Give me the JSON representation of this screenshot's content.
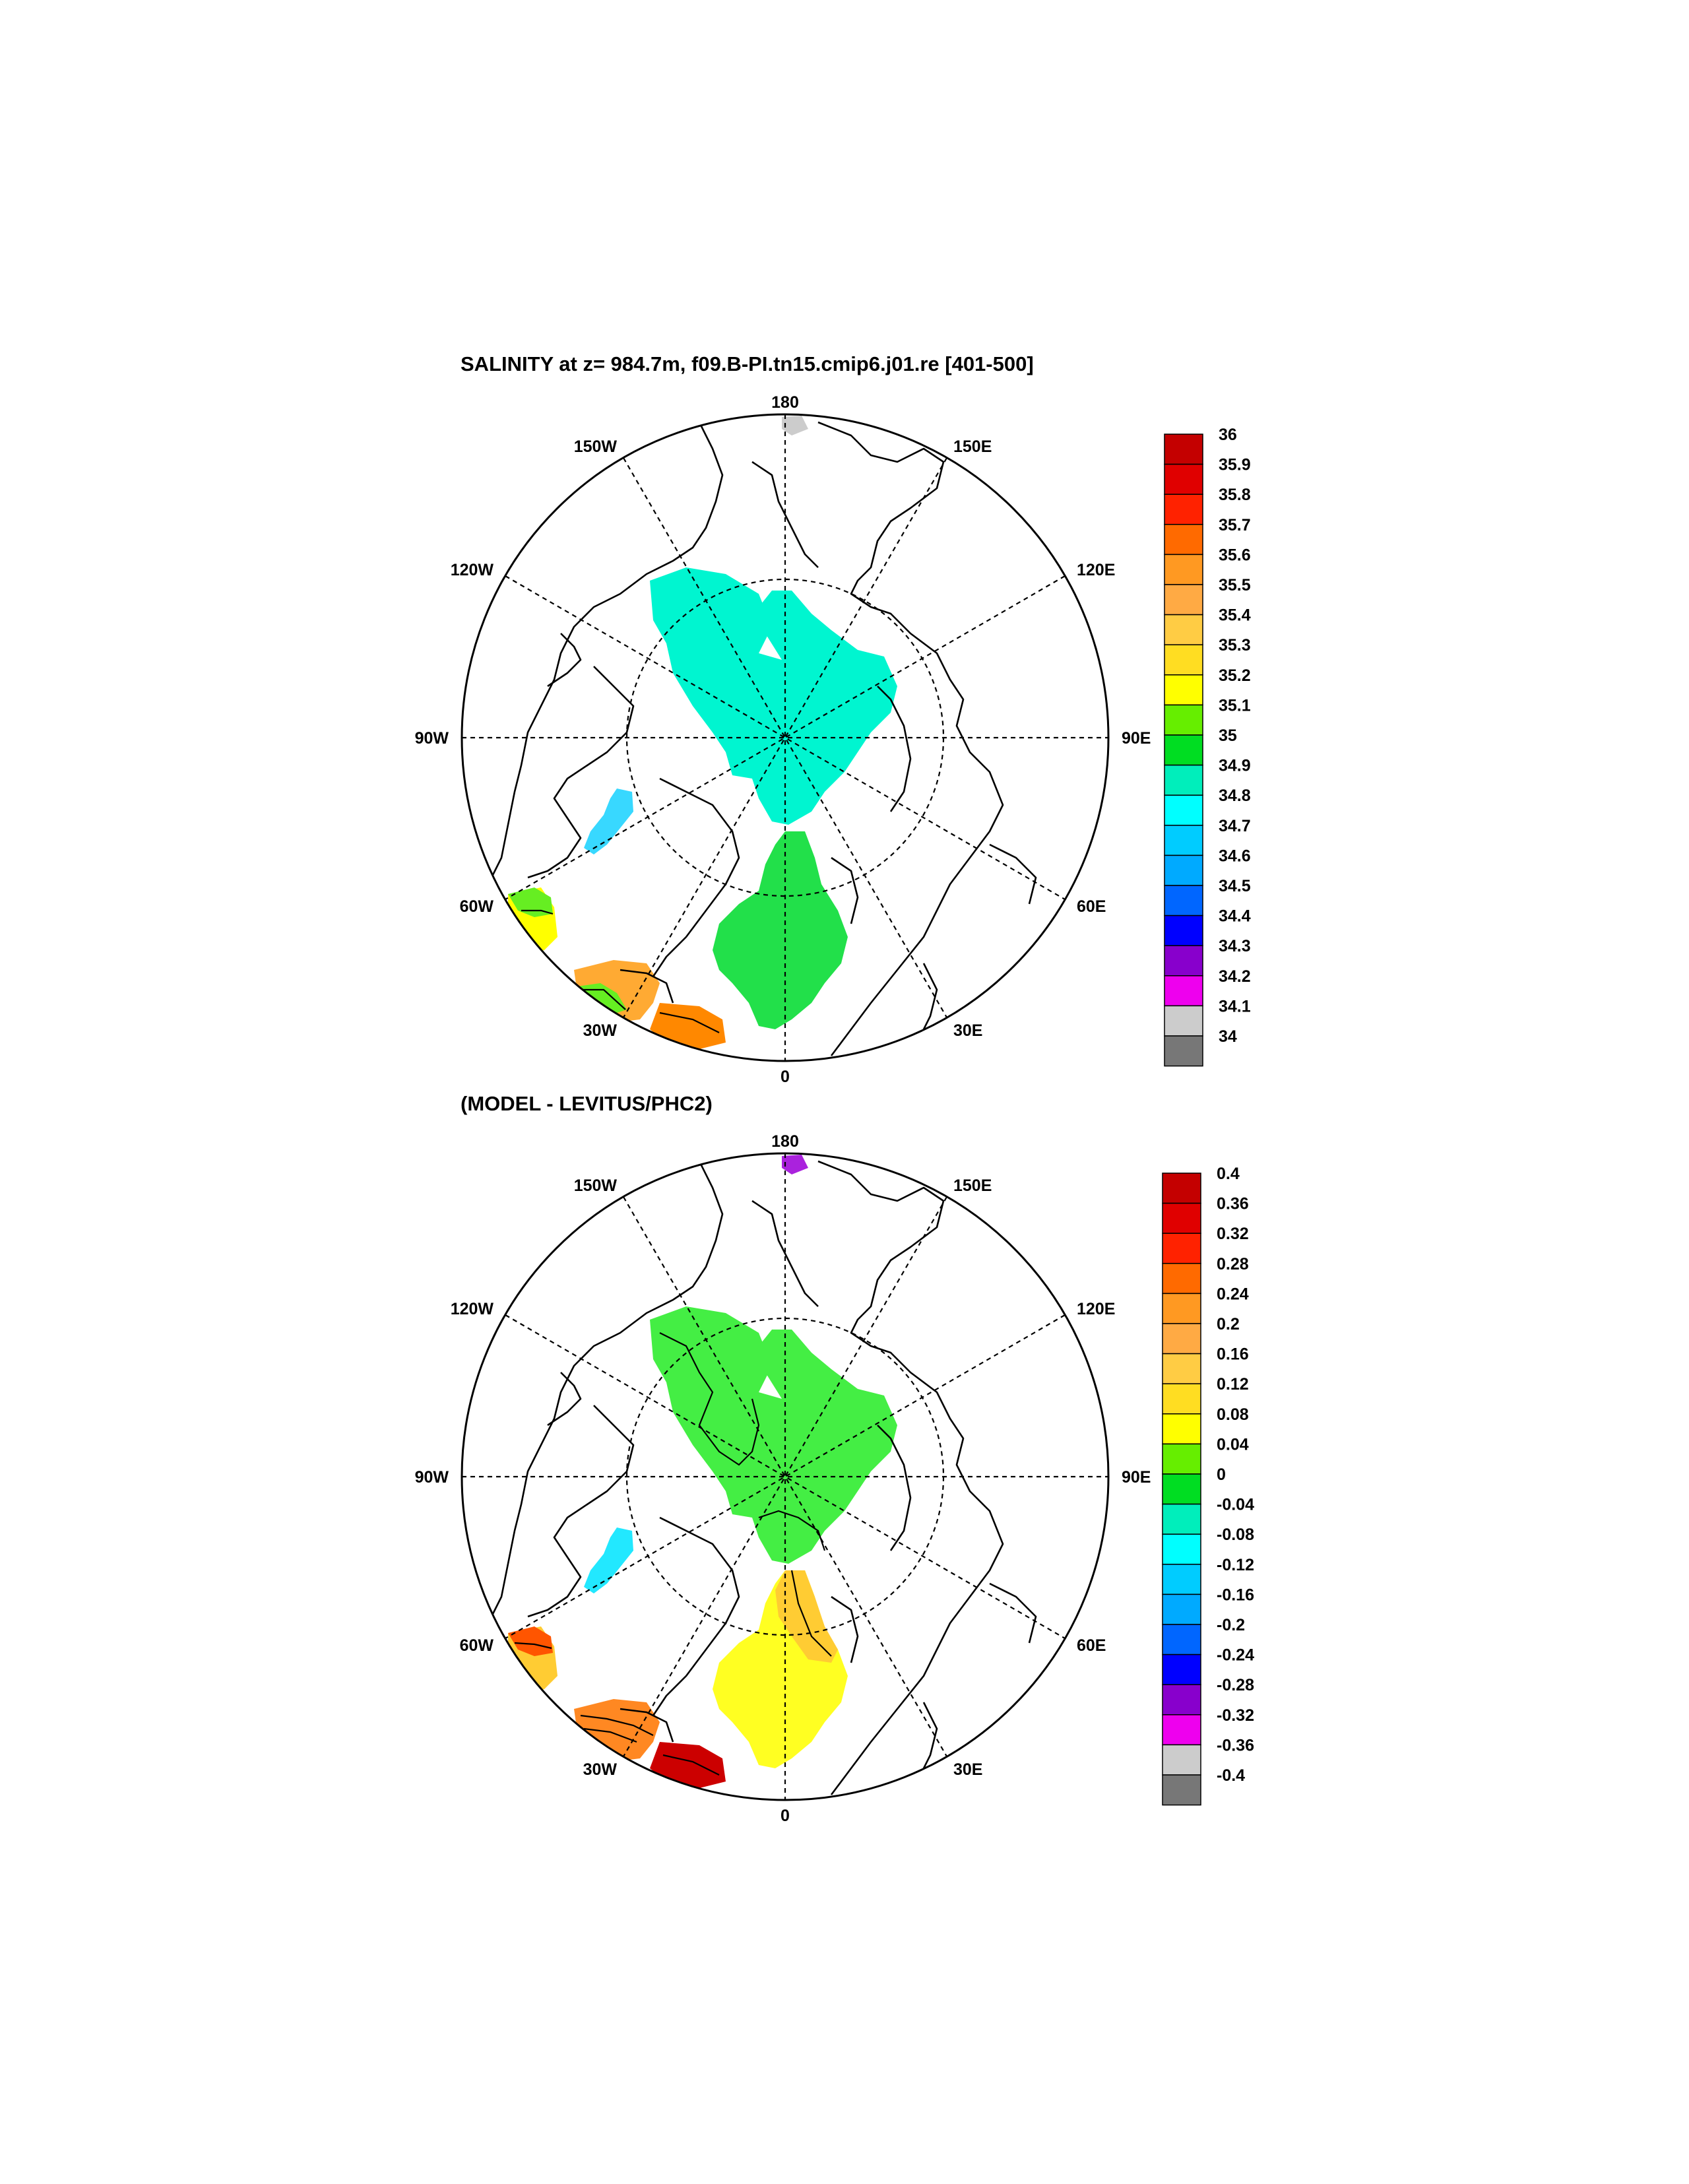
{
  "figure": {
    "panels": [
      {
        "id": "salinity",
        "title": "SALINITY at z= 984.7m, f09.B-PI.tn15.cmip6.j01.re [401-500]",
        "lon_labels": {
          "top": "180",
          "bottom": "0",
          "left": "90W",
          "right": "90E",
          "tl30": "150W",
          "tr30": "150E",
          "tl60": "120W",
          "tr60": "120E",
          "bl60": "60W",
          "br60": "60E",
          "bl30": "30W",
          "br30": "30E"
        },
        "colorbar_labels": [
          "36",
          "35.9",
          "35.8",
          "35.7",
          "35.6",
          "35.5",
          "35.4",
          "35.3",
          "35.2",
          "35.1",
          "35",
          "34.9",
          "34.8",
          "34.7",
          "34.6",
          "34.5",
          "34.4",
          "34.3",
          "34.2",
          "34.1",
          "34"
        ],
        "field_colors": {
          "arctic_basin": "#00f5d0",
          "nordic_seas": "#22e04a",
          "baffin": "#38d8ff",
          "atlantic_yellow": "#ffff00",
          "atlantic_green": "#66ee22",
          "atlantic_orange": "#ffaa33",
          "atlantic_dark": "#ff8800",
          "pacific_gray": "#cccccc"
        }
      },
      {
        "id": "difference",
        "title": "(MODEL - LEVITUS/PHC2)",
        "lon_labels": {
          "top": "180",
          "bottom": "0",
          "left": "90W",
          "right": "90E",
          "tl30": "150W",
          "tr30": "150E",
          "tl60": "120W",
          "tr60": "120E",
          "bl60": "60W",
          "br60": "60E",
          "bl30": "30W",
          "br30": "30E"
        },
        "colorbar_labels": [
          "0.4",
          "0.36",
          "0.32",
          "0.28",
          "0.24",
          "0.2",
          "0.16",
          "0.12",
          "0.08",
          "0.04",
          "0",
          "-0.04",
          "-0.08",
          "-0.12",
          "-0.16",
          "-0.2",
          "-0.24",
          "-0.28",
          "-0.32",
          "-0.36",
          "-0.4"
        ],
        "field_colors": {
          "arctic_basin": "#44ee44",
          "nordic_seas": "#ffff22",
          "baffin": "#22e8ff",
          "atlantic_yellow": "#ffcc33",
          "atlantic_green": "#ff5500",
          "atlantic_orange": "#ff8822",
          "atlantic_dark": "#cc0000",
          "pacific_gray": "#aa22dd"
        }
      }
    ],
    "colorbar_colors": [
      "#c40000",
      "#e00000",
      "#ff2200",
      "#ff6a00",
      "#ff9922",
      "#ffaa44",
      "#ffcc44",
      "#ffdd22",
      "#ffff00",
      "#66ee00",
      "#00dd22",
      "#00eebb",
      "#00ffff",
      "#00ccff",
      "#00aaff",
      "#0066ff",
      "#0000ff",
      "#8800cc",
      "#ee00ee",
      "#cccccc",
      "#777777"
    ]
  }
}
